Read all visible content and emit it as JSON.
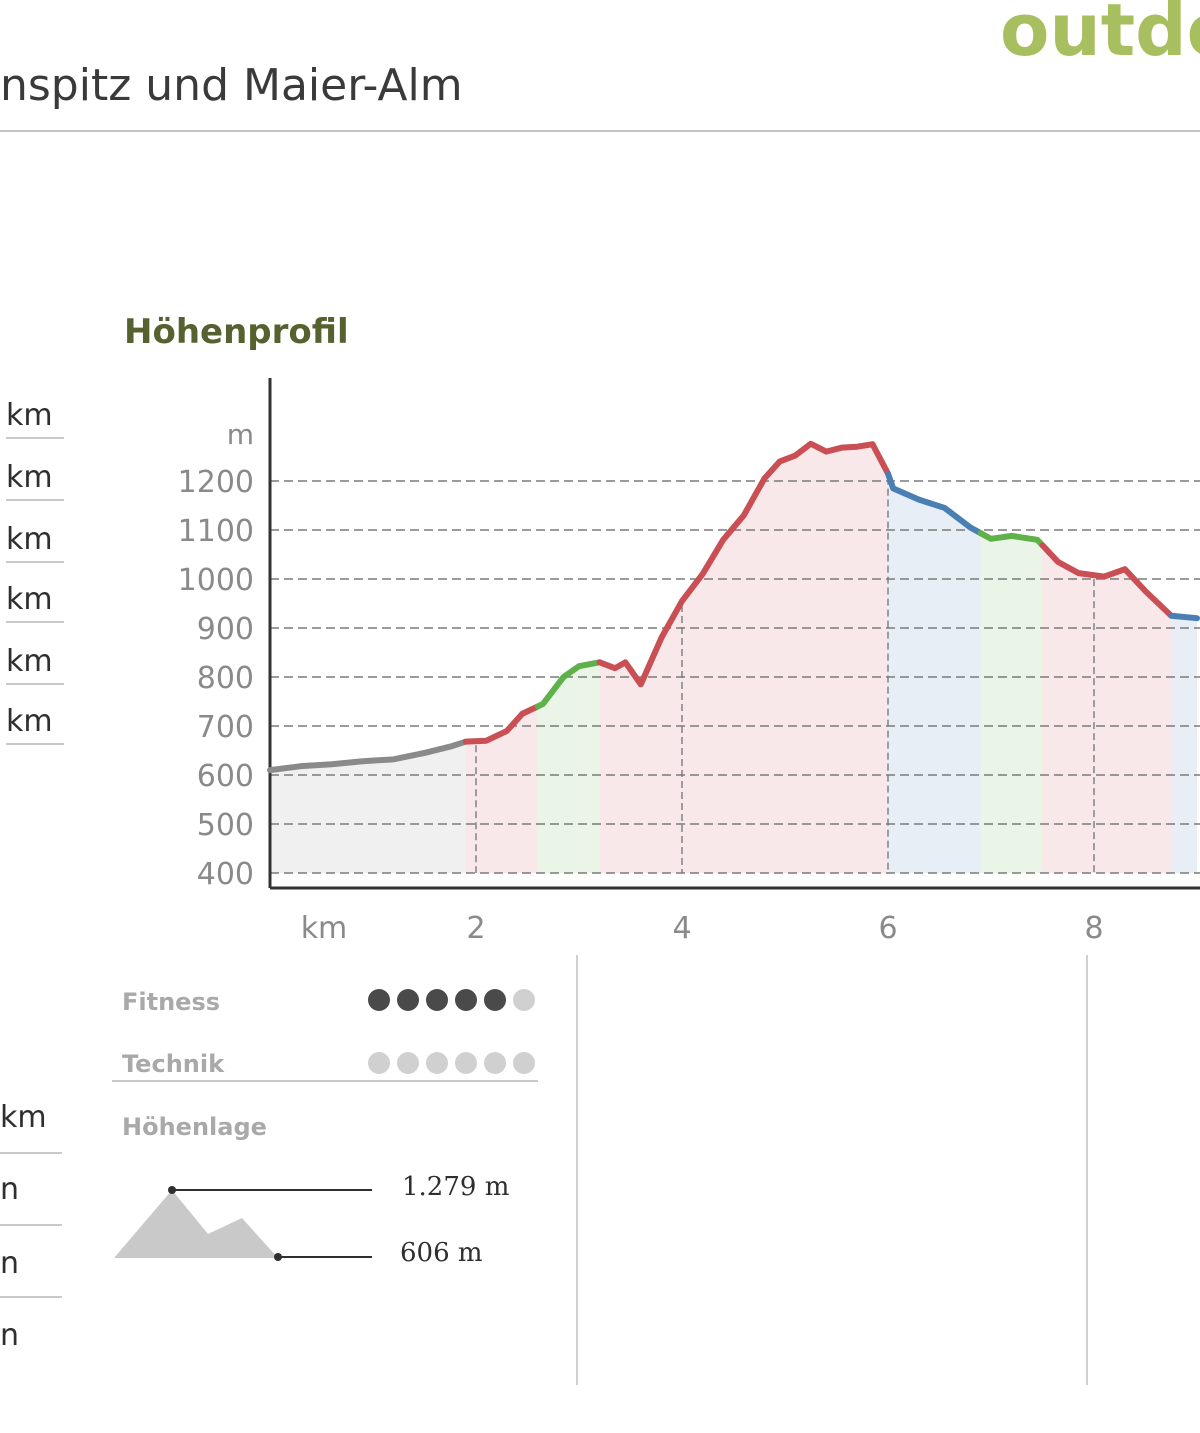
{
  "brand": "outdo",
  "tour_title": "nspitz und Maier-Alm",
  "section_title": "Höhenprofil",
  "left_stats": {
    "upper_units": [
      "km",
      "km",
      "km",
      "km",
      "km",
      "km"
    ],
    "lower_units": [
      "km",
      "n",
      "n",
      "n"
    ]
  },
  "ratings": {
    "fitness_label": "Fitness",
    "fitness_level": 5,
    "technik_label": "Technik",
    "technik_level": 0,
    "max_dots": 6,
    "hoehenlage_label": "Höhenlage",
    "max_altitude": "1.279 m",
    "min_altitude": "606 m"
  },
  "colors": {
    "brand": "#a8bf5f",
    "section_title": "#55612e",
    "difficult": "#c94f55",
    "medium": "#4a7fb3",
    "easy": "#5fb14a",
    "unrated": "#8a8a8a"
  },
  "chart_data": {
    "type": "area",
    "title": "Höhenprofil",
    "xlabel": "km",
    "ylabel": "m",
    "xlim": [
      0,
      9
    ],
    "ylim": [
      400,
      1290
    ],
    "y_ticks": [
      400,
      500,
      600,
      700,
      800,
      900,
      1000,
      1100,
      1200
    ],
    "x_ticks": [
      2,
      4,
      6,
      8
    ],
    "grid": true,
    "points": [
      [
        0.0,
        610
      ],
      [
        0.3,
        618
      ],
      [
        0.6,
        622
      ],
      [
        0.9,
        628
      ],
      [
        1.2,
        632
      ],
      [
        1.5,
        645
      ],
      [
        1.75,
        658
      ],
      [
        1.9,
        668
      ],
      [
        2.1,
        670
      ],
      [
        2.3,
        690
      ],
      [
        2.45,
        725
      ],
      [
        2.65,
        745
      ],
      [
        2.85,
        800
      ],
      [
        3.0,
        822
      ],
      [
        3.2,
        830
      ],
      [
        3.35,
        818
      ],
      [
        3.45,
        830
      ],
      [
        3.6,
        785
      ],
      [
        3.8,
        880
      ],
      [
        4.0,
        955
      ],
      [
        4.2,
        1010
      ],
      [
        4.4,
        1080
      ],
      [
        4.6,
        1130
      ],
      [
        4.8,
        1205
      ],
      [
        4.95,
        1240
      ],
      [
        5.1,
        1252
      ],
      [
        5.25,
        1276
      ],
      [
        5.4,
        1260
      ],
      [
        5.55,
        1268
      ],
      [
        5.7,
        1270
      ],
      [
        5.85,
        1275
      ],
      [
        6.0,
        1215
      ],
      [
        6.05,
        1185
      ],
      [
        6.3,
        1162
      ],
      [
        6.55,
        1145
      ],
      [
        6.8,
        1105
      ],
      [
        7.0,
        1082
      ],
      [
        7.2,
        1088
      ],
      [
        7.45,
        1080
      ],
      [
        7.65,
        1035
      ],
      [
        7.85,
        1012
      ],
      [
        8.1,
        1005
      ],
      [
        8.3,
        1020
      ],
      [
        8.5,
        975
      ],
      [
        8.75,
        925
      ],
      [
        9.0,
        920
      ]
    ],
    "segments": [
      {
        "from": 0.0,
        "to": 1.9,
        "class": "unrated"
      },
      {
        "from": 1.9,
        "to": 2.6,
        "class": "difficult"
      },
      {
        "from": 2.6,
        "to": 3.2,
        "class": "easy"
      },
      {
        "from": 3.2,
        "to": 6.0,
        "class": "difficult"
      },
      {
        "from": 6.0,
        "to": 6.9,
        "class": "medium"
      },
      {
        "from": 6.9,
        "to": 7.5,
        "class": "easy"
      },
      {
        "from": 7.5,
        "to": 8.75,
        "class": "difficult"
      },
      {
        "from": 8.75,
        "to": 9.0,
        "class": "medium"
      }
    ],
    "markers_x": [
      2,
      4,
      6,
      8
    ]
  }
}
